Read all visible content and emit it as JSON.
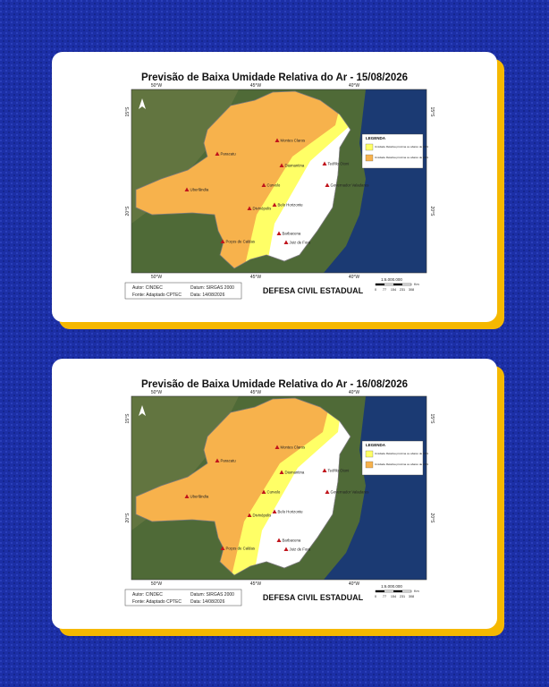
{
  "maps": [
    {
      "title": "Previsão de Baixa Umidade Relativa do Ar - 15/08/2026",
      "longitudes": [
        "50°W",
        "45°W",
        "40°W"
      ],
      "latitudes": [
        "15°S",
        "20°S"
      ],
      "cities": [
        "Montes Claros",
        "Paracatu",
        "Diamantina",
        "Teófilo Otoni",
        "Governador Valadares",
        "Uberlândia",
        "Curvelo",
        "Belo Horizonte",
        "Divinópolis",
        "Poços de Caldas",
        "Barbacena",
        "Juiz de Fora"
      ],
      "legend": {
        "title": "LEGENDA",
        "items": [
          {
            "label": "Umidade Relativa próxima ou abaixo de 30%",
            "color": "#ffff66"
          },
          {
            "label": "Umidade Relativa próxima ou abaixo de 20%",
            "color": "#f7b24c"
          }
        ]
      },
      "credits": {
        "author": "Autor: CINDEC",
        "datum": "Datum: SIRGAS 2000",
        "source": "Fonte: Adaptado CPTEC",
        "date": "Data: 14/08/2026"
      },
      "agency": "DEFESA CIVIL ESTADUAL",
      "scale": {
        "ratio": "1:6.000.000",
        "ticks": [
          0,
          77,
          154,
          231,
          308
        ],
        "unit": "Km"
      }
    },
    {
      "title": "Previsão de Baixa Umidade Relativa do Ar - 16/08/2026",
      "longitudes": [
        "50°W",
        "45°W",
        "40°W"
      ],
      "latitudes": [
        "15°S",
        "20°S"
      ],
      "cities": [
        "Montes Claros",
        "Paracatu",
        "Diamantina",
        "Teófilo Otoni",
        "Governador Valadares",
        "Uberlândia",
        "Curvelo",
        "Belo Horizonte",
        "Divinópolis",
        "Poços de Caldas",
        "Barbacena",
        "Juiz de Fora"
      ],
      "legend": {
        "title": "LEGENDA",
        "items": [
          {
            "label": "Umidade Relativa próxima ou abaixo de 30%",
            "color": "#ffff66"
          },
          {
            "label": "Umidade Relativa próxima ou abaixo de 20%",
            "color": "#f7b24c"
          }
        ]
      },
      "credits": {
        "author": "Autor: CINDEC",
        "datum": "Datum: SIRGAS 2000",
        "source": "Fonte: Adaptado CPTEC",
        "date": "Data: 14/08/2026"
      },
      "agency": "DEFESA CIVIL ESTADUAL",
      "scale": {
        "ratio": "1:6.000.000",
        "ticks": [
          0,
          77,
          154,
          231,
          308
        ],
        "unit": "Km"
      }
    }
  ]
}
